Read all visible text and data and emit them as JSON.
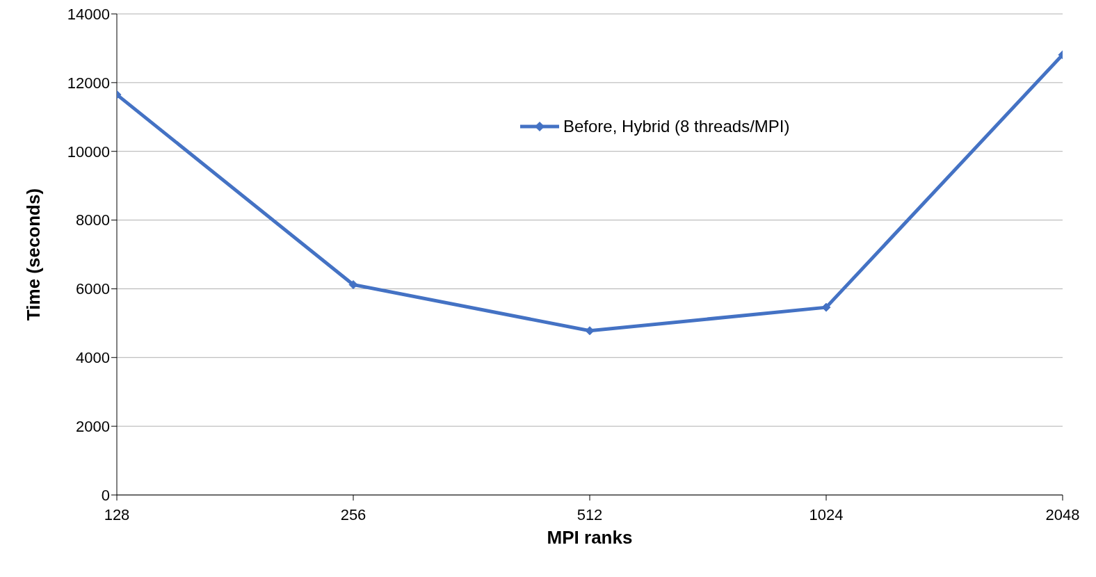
{
  "chart_data": {
    "type": "line",
    "xlabel": "MPI ranks",
    "ylabel": "Time (seconds)",
    "categories": [
      "128",
      "256",
      "512",
      "1024",
      "2048"
    ],
    "series": [
      {
        "name": "Before, Hybrid (8 threads/MPI)",
        "color": "#4472c4",
        "values": [
          11650,
          6120,
          4780,
          5460,
          12810
        ]
      }
    ],
    "ylim": [
      0,
      14000
    ],
    "yticks": [
      0,
      2000,
      4000,
      6000,
      8000,
      10000,
      12000,
      14000
    ],
    "grid": "y",
    "legend": "top",
    "marker": "diamond",
    "line_style": "solid"
  }
}
